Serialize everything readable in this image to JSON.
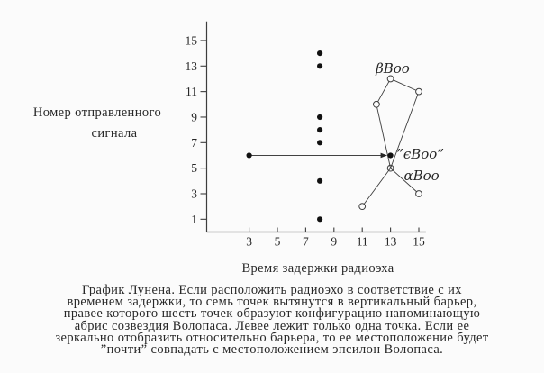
{
  "colors": {
    "background": "#fbfbfb",
    "ink": "#272727",
    "line": "#3d3d3d",
    "marker_fill": "#111111"
  },
  "chart_data": {
    "type": "scatter",
    "title": "",
    "xlabel": "Время задержки радиоэха",
    "ylabel_lines": [
      "Номер отправленного",
      "сигнала"
    ],
    "x_ticks": [
      3,
      5,
      7,
      9,
      11,
      13,
      15
    ],
    "y_ticks": [
      1,
      3,
      5,
      7,
      9,
      11,
      13,
      15
    ],
    "xlim": [
      0,
      15.5
    ],
    "ylim": [
      0,
      16.5
    ],
    "grid": false,
    "legend": "none",
    "series": [
      {
        "name": "vertical-barrier-seven-points",
        "marker": "filled-dot",
        "points": [
          [
            8,
            14
          ],
          [
            8,
            13
          ],
          [
            8,
            9
          ],
          [
            8,
            8
          ],
          [
            8,
            7
          ],
          [
            8,
            4
          ],
          [
            8,
            1
          ]
        ]
      },
      {
        "name": "single-left-point",
        "marker": "filled-dot",
        "points": [
          [
            3,
            6
          ]
        ]
      },
      {
        "name": "mirrored-point-epsilon-boo",
        "marker": "filled-dot",
        "points": [
          [
            13,
            6
          ]
        ]
      },
      {
        "name": "bootes-constellation-six-points",
        "marker": "open-circle",
        "points": [
          [
            13,
            12
          ],
          [
            15,
            11
          ],
          [
            12,
            10
          ],
          [
            13,
            5
          ],
          [
            15,
            3
          ],
          [
            11,
            2
          ]
        ],
        "lines_through_point": [
          13,
          5
        ]
      }
    ],
    "constellation_edges": [
      [
        [
          13,
          12
        ],
        [
          12,
          10
        ]
      ],
      [
        [
          13,
          12
        ],
        [
          15,
          11
        ]
      ],
      [
        [
          15,
          11
        ],
        [
          13,
          5
        ]
      ],
      [
        [
          12,
          10
        ],
        [
          13,
          5
        ]
      ],
      [
        [
          13,
          5
        ],
        [
          11,
          2
        ]
      ],
      [
        [
          13,
          5
        ],
        [
          15,
          3
        ]
      ]
    ],
    "arrow": {
      "from": [
        3,
        6
      ],
      "to": [
        13,
        6
      ]
    },
    "annotations": [
      {
        "text": "βBoo",
        "x": 13.15,
        "y": 12.45,
        "align": "middle"
      },
      {
        "text": "”ϵBoo”",
        "x": 13.42,
        "y": 5.75,
        "align": "start"
      },
      {
        "text": "αBoo",
        "x": 13.95,
        "y": 4.05,
        "align": "start"
      }
    ]
  },
  "caption": {
    "lines": [
      "График Лунена. Если расположить радиоэхо в соответствие с их",
      "временем задержки, то семь точек вытянутся в вертикальный барьер,",
      "правее которого шесть точек образуют конфигурацию напоминающую",
      "абрис созвездия Волопаса. Левее лежит только одна точка. Если ее",
      "зеркально отобразить относительно барьера, то ее местоположение будет",
      "”почти” совпадать с местоположением эпсилон Волопаса."
    ]
  }
}
